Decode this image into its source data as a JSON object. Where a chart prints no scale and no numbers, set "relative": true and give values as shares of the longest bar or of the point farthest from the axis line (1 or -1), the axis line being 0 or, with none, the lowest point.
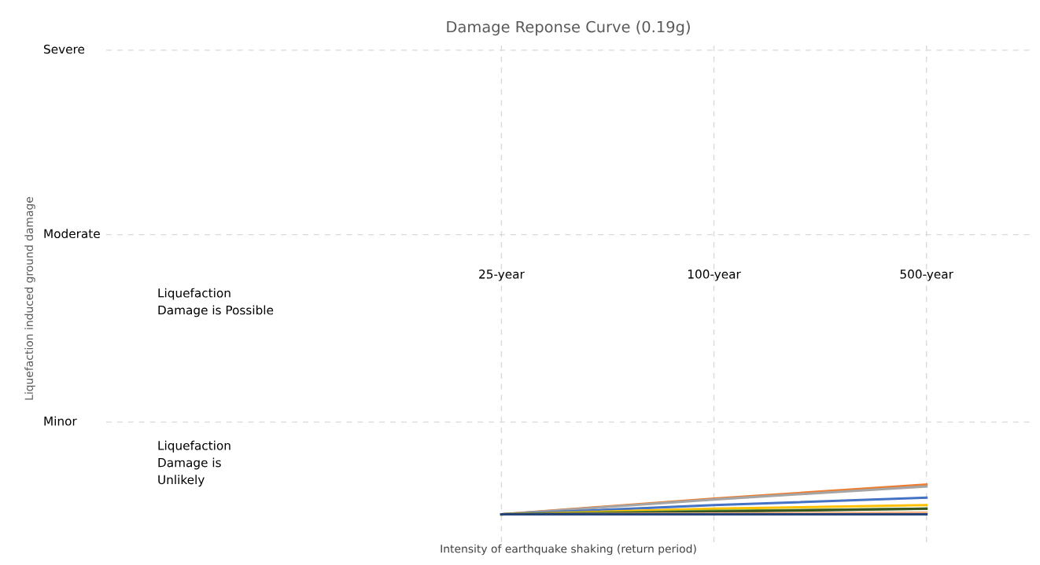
{
  "chart_data": {
    "type": "line",
    "title": "Damage Reponse Curve (0.19g)",
    "xlabel": "Intensity of earthquake shaking (return period)",
    "categories": [
      "25-year",
      "100-year",
      "500-year"
    ],
    "relative": true,
    "series": [
      {
        "color": "#ed7d31",
        "values": [
          0,
          0.53,
          1
        ]
      },
      {
        "color": "#a5a5a5",
        "values": [
          0,
          0.5,
          0.94
        ]
      },
      {
        "color": "#4472c4",
        "values": [
          0,
          0.31,
          0.56
        ]
      },
      {
        "color": "#ffc000",
        "values": [
          0,
          0.19,
          0.31
        ]
      },
      {
        "color": "#70ad47",
        "values": [
          0,
          0.12,
          0.19
        ]
      },
      {
        "color": "#375623",
        "values": [
          0,
          0.09,
          0.19
        ]
      },
      {
        "color": "#f4b183",
        "values": [
          0,
          0.03,
          0.06
        ]
      },
      {
        "color": "#264478",
        "values": [
          0,
          0,
          0
        ]
      }
    ],
    "ref_lines": [
      {
        "axis": "y",
        "value": 3.1,
        "label": "Minor"
      },
      {
        "axis": "y",
        "value": 9.4,
        "label": "Moderate"
      },
      {
        "axis": "y",
        "value": 15.6,
        "label": "Severe"
      }
    ],
    "grid": "x",
    "line_style": "solid",
    "marker": "none",
    "annotations": [
      "Liquefaction\nDamage is Possible",
      "Liquefaction\nDamage is\nUnlikely",
      "Liquefaction induced ground damage"
    ]
  }
}
